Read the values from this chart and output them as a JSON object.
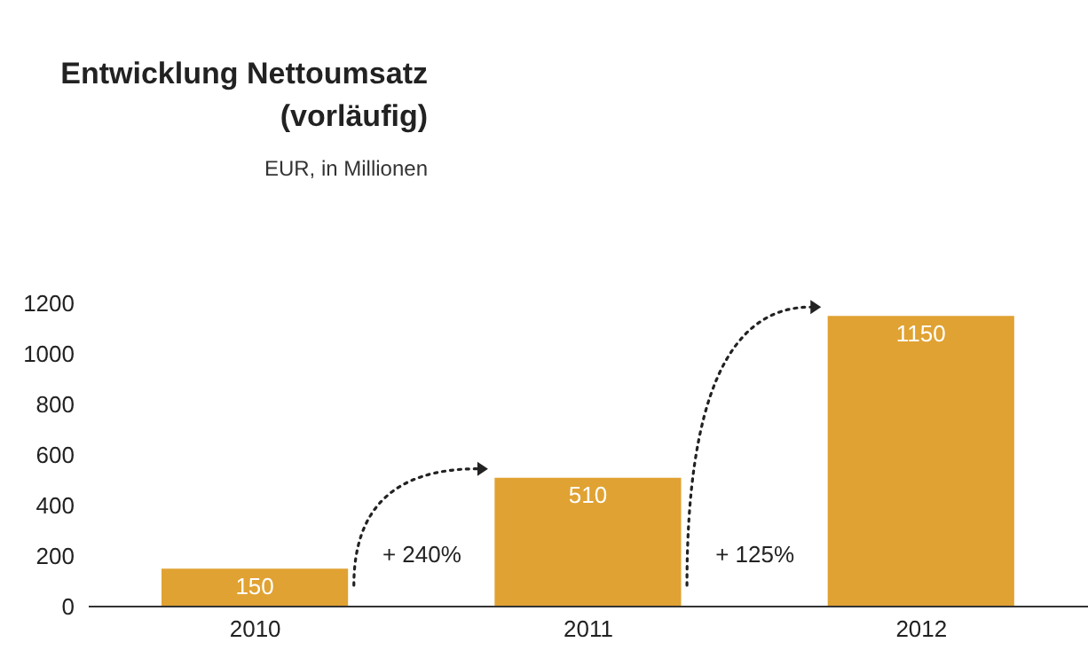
{
  "chart_data": {
    "type": "bar",
    "title": "Entwicklung Nettoumsatz\n(vorläufig)",
    "subtitle": "EUR, in Millionen",
    "categories": [
      "2010",
      "2011",
      "2012"
    ],
    "values": [
      150,
      510,
      1150
    ],
    "color": "#e0a232",
    "ylim": [
      0,
      1200
    ],
    "yticks": [
      0,
      200,
      400,
      600,
      800,
      1000,
      1200
    ],
    "grid": false,
    "data_labels": true,
    "annotations": [
      "+ 240%",
      "+ 125%"
    ]
  }
}
